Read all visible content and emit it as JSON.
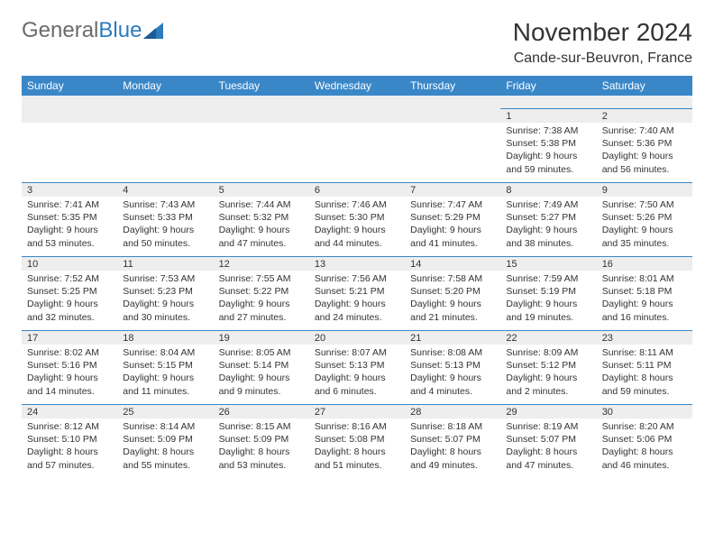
{
  "logo": {
    "text1": "General",
    "text2": "Blue"
  },
  "title": "November 2024",
  "location": "Cande-sur-Beuvron, France",
  "colors": {
    "header_bg": "#3a87c8",
    "header_text": "#ffffff",
    "dayrow_bg": "#eeeeee",
    "cell_bg": "#ffffff",
    "border": "#3a87c8",
    "logo_gray": "#6b6b6b",
    "logo_blue": "#2b7bbf"
  },
  "weekdays": [
    "Sunday",
    "Monday",
    "Tuesday",
    "Wednesday",
    "Thursday",
    "Friday",
    "Saturday"
  ],
  "weeks": [
    {
      "days": [
        null,
        null,
        null,
        null,
        null,
        {
          "n": "1",
          "sr": "Sunrise: 7:38 AM",
          "ss": "Sunset: 5:38 PM",
          "dl": "Daylight: 9 hours and 59 minutes."
        },
        {
          "n": "2",
          "sr": "Sunrise: 7:40 AM",
          "ss": "Sunset: 5:36 PM",
          "dl": "Daylight: 9 hours and 56 minutes."
        }
      ]
    },
    {
      "days": [
        {
          "n": "3",
          "sr": "Sunrise: 7:41 AM",
          "ss": "Sunset: 5:35 PM",
          "dl": "Daylight: 9 hours and 53 minutes."
        },
        {
          "n": "4",
          "sr": "Sunrise: 7:43 AM",
          "ss": "Sunset: 5:33 PM",
          "dl": "Daylight: 9 hours and 50 minutes."
        },
        {
          "n": "5",
          "sr": "Sunrise: 7:44 AM",
          "ss": "Sunset: 5:32 PM",
          "dl": "Daylight: 9 hours and 47 minutes."
        },
        {
          "n": "6",
          "sr": "Sunrise: 7:46 AM",
          "ss": "Sunset: 5:30 PM",
          "dl": "Daylight: 9 hours and 44 minutes."
        },
        {
          "n": "7",
          "sr": "Sunrise: 7:47 AM",
          "ss": "Sunset: 5:29 PM",
          "dl": "Daylight: 9 hours and 41 minutes."
        },
        {
          "n": "8",
          "sr": "Sunrise: 7:49 AM",
          "ss": "Sunset: 5:27 PM",
          "dl": "Daylight: 9 hours and 38 minutes."
        },
        {
          "n": "9",
          "sr": "Sunrise: 7:50 AM",
          "ss": "Sunset: 5:26 PM",
          "dl": "Daylight: 9 hours and 35 minutes."
        }
      ]
    },
    {
      "days": [
        {
          "n": "10",
          "sr": "Sunrise: 7:52 AM",
          "ss": "Sunset: 5:25 PM",
          "dl": "Daylight: 9 hours and 32 minutes."
        },
        {
          "n": "11",
          "sr": "Sunrise: 7:53 AM",
          "ss": "Sunset: 5:23 PM",
          "dl": "Daylight: 9 hours and 30 minutes."
        },
        {
          "n": "12",
          "sr": "Sunrise: 7:55 AM",
          "ss": "Sunset: 5:22 PM",
          "dl": "Daylight: 9 hours and 27 minutes."
        },
        {
          "n": "13",
          "sr": "Sunrise: 7:56 AM",
          "ss": "Sunset: 5:21 PM",
          "dl": "Daylight: 9 hours and 24 minutes."
        },
        {
          "n": "14",
          "sr": "Sunrise: 7:58 AM",
          "ss": "Sunset: 5:20 PM",
          "dl": "Daylight: 9 hours and 21 minutes."
        },
        {
          "n": "15",
          "sr": "Sunrise: 7:59 AM",
          "ss": "Sunset: 5:19 PM",
          "dl": "Daylight: 9 hours and 19 minutes."
        },
        {
          "n": "16",
          "sr": "Sunrise: 8:01 AM",
          "ss": "Sunset: 5:18 PM",
          "dl": "Daylight: 9 hours and 16 minutes."
        }
      ]
    },
    {
      "days": [
        {
          "n": "17",
          "sr": "Sunrise: 8:02 AM",
          "ss": "Sunset: 5:16 PM",
          "dl": "Daylight: 9 hours and 14 minutes."
        },
        {
          "n": "18",
          "sr": "Sunrise: 8:04 AM",
          "ss": "Sunset: 5:15 PM",
          "dl": "Daylight: 9 hours and 11 minutes."
        },
        {
          "n": "19",
          "sr": "Sunrise: 8:05 AM",
          "ss": "Sunset: 5:14 PM",
          "dl": "Daylight: 9 hours and 9 minutes."
        },
        {
          "n": "20",
          "sr": "Sunrise: 8:07 AM",
          "ss": "Sunset: 5:13 PM",
          "dl": "Daylight: 9 hours and 6 minutes."
        },
        {
          "n": "21",
          "sr": "Sunrise: 8:08 AM",
          "ss": "Sunset: 5:13 PM",
          "dl": "Daylight: 9 hours and 4 minutes."
        },
        {
          "n": "22",
          "sr": "Sunrise: 8:09 AM",
          "ss": "Sunset: 5:12 PM",
          "dl": "Daylight: 9 hours and 2 minutes."
        },
        {
          "n": "23",
          "sr": "Sunrise: 8:11 AM",
          "ss": "Sunset: 5:11 PM",
          "dl": "Daylight: 8 hours and 59 minutes."
        }
      ]
    },
    {
      "days": [
        {
          "n": "24",
          "sr": "Sunrise: 8:12 AM",
          "ss": "Sunset: 5:10 PM",
          "dl": "Daylight: 8 hours and 57 minutes."
        },
        {
          "n": "25",
          "sr": "Sunrise: 8:14 AM",
          "ss": "Sunset: 5:09 PM",
          "dl": "Daylight: 8 hours and 55 minutes."
        },
        {
          "n": "26",
          "sr": "Sunrise: 8:15 AM",
          "ss": "Sunset: 5:09 PM",
          "dl": "Daylight: 8 hours and 53 minutes."
        },
        {
          "n": "27",
          "sr": "Sunrise: 8:16 AM",
          "ss": "Sunset: 5:08 PM",
          "dl": "Daylight: 8 hours and 51 minutes."
        },
        {
          "n": "28",
          "sr": "Sunrise: 8:18 AM",
          "ss": "Sunset: 5:07 PM",
          "dl": "Daylight: 8 hours and 49 minutes."
        },
        {
          "n": "29",
          "sr": "Sunrise: 8:19 AM",
          "ss": "Sunset: 5:07 PM",
          "dl": "Daylight: 8 hours and 47 minutes."
        },
        {
          "n": "30",
          "sr": "Sunrise: 8:20 AM",
          "ss": "Sunset: 5:06 PM",
          "dl": "Daylight: 8 hours and 46 minutes."
        }
      ]
    }
  ]
}
